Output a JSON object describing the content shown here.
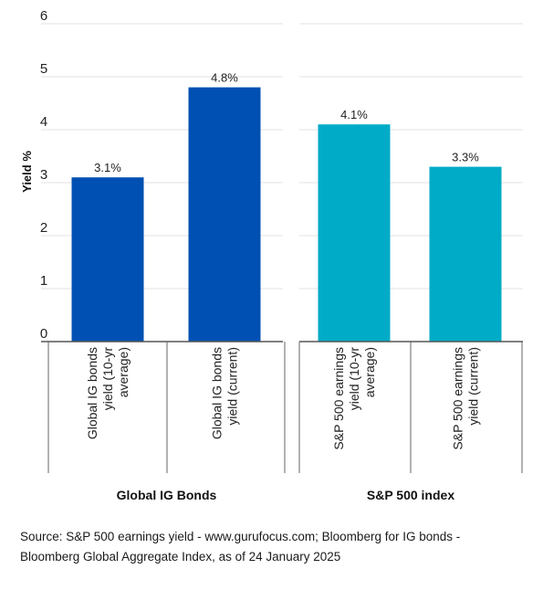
{
  "chart_data": {
    "type": "bar",
    "ylabel": "Yield %",
    "ylim": [
      0,
      6
    ],
    "yticks": [
      "0",
      "1",
      "2",
      "3",
      "4",
      "5",
      "6"
    ],
    "grid": true,
    "groups": [
      {
        "name": "Global IG Bonds",
        "color": "#0050b3",
        "bars": [
          {
            "category": [
              "Global IG bonds",
              "yield (10-yr",
              "average)"
            ],
            "value": 3.1,
            "label": "3.1%"
          },
          {
            "category": [
              "Global IG bonds",
              "yield (current)"
            ],
            "value": 4.8,
            "label": "4.8%"
          }
        ]
      },
      {
        "name": "S&P 500 index",
        "color": "#00abc7",
        "bars": [
          {
            "category": [
              "S&P 500 earnings",
              "yield (10-yr",
              "average)"
            ],
            "value": 4.1,
            "label": "4.1%"
          },
          {
            "category": [
              "S&P 500 earnings",
              "yield (current)"
            ],
            "value": 3.3,
            "label": "3.3%"
          }
        ]
      }
    ]
  },
  "source": {
    "line1": "Source: S&P 500 earnings yield - www.gurufocus.com; Bloomberg for IG bonds -",
    "line2": "Bloomberg Global Aggregate Index, as of 24 January 2025"
  }
}
